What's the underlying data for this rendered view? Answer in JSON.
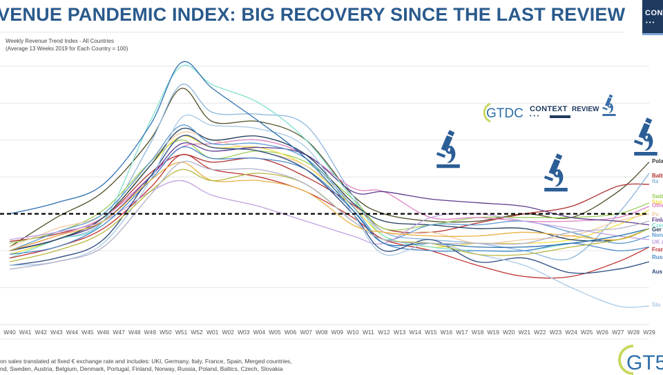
{
  "header": {
    "title": "VENUE PANDEMIC INDEX: BIG RECOVERY SINCE THE LAST REVIEW",
    "badge_text": "CON",
    "badge_dots": "•••"
  },
  "subtitle": {
    "line1": "Weekly Revenue Trend Index - All Countries",
    "line2": "(Average 13 Weeks 2019 for Each Country = 100)"
  },
  "context_logo": {
    "brand": "GTDC",
    "context": "CONTEXT",
    "review": "REVIEW",
    "dots": "•••"
  },
  "bottom_logo": {
    "brand": "GT5"
  },
  "footnote": {
    "line1": "on sales translated at fixed € exchange rate and includes: UKI, Germany, Italy, France, Spain, Merged countries,",
    "line2": "nd, Sweden, Austria, Belgium, Denmark, Portugal, Finland, Norway, Russia, Poland, Baltics, Czech, Slovakia"
  },
  "chart_data": {
    "type": "line",
    "title": "Weekly Revenue Trend Index - All Countries",
    "subtitle": "(Average 13 Weeks 2019 for Each Country = 100)",
    "xlabel": "",
    "ylabel": "",
    "ylim": [
      20,
      180
    ],
    "gridlines": [
      40,
      60,
      80,
      100,
      120,
      140,
      160,
      180
    ],
    "reference_line": {
      "value": 100,
      "style": "dashed",
      "color": "#000000"
    },
    "grid": true,
    "legend": "end-labels-right",
    "categories": [
      "W40",
      "W41",
      "W42",
      "W43",
      "W44",
      "W45",
      "W46",
      "W47",
      "W48",
      "W49",
      "W50",
      "W51",
      "W52",
      "W01",
      "W02",
      "W03",
      "W04",
      "W05",
      "W06",
      "W07",
      "W08",
      "W09",
      "W10",
      "W11",
      "W12",
      "W13",
      "W14",
      "W15",
      "W16",
      "W17",
      "W18",
      "W19",
      "W20",
      "W21",
      "W22",
      "W23",
      "W24",
      "W25",
      "W26",
      "W27",
      "W28",
      "W29"
    ],
    "sample_weeks": [
      0,
      3,
      6,
      9,
      11,
      13,
      16,
      19,
      22,
      24,
      27,
      30,
      33,
      36,
      39,
      41
    ],
    "series": [
      {
        "name": "Poland",
        "color": "#4d4d26",
        "values": [
          82,
          98,
          112,
          140,
          168,
          150,
          150,
          140,
          110,
          100,
          96,
          96,
          100,
          98,
          112,
          128
        ]
      },
      {
        "name": "Baltics",
        "color": "#b03030",
        "values": [
          85,
          89,
          98,
          122,
          132,
          128,
          130,
          120,
          105,
          92,
          90,
          95,
          100,
          104,
          115,
          116
        ]
      },
      {
        "name": "Italy",
        "color": "#8ab4dc",
        "values": [
          80,
          86,
          96,
          138,
          170,
          155,
          154,
          148,
          110,
          90,
          86,
          84,
          80,
          76,
          100,
          122
        ]
      },
      {
        "name": "Switzerland",
        "color": "#9acd5a",
        "values": [
          84,
          90,
          102,
          128,
          140,
          130,
          134,
          128,
          108,
          92,
          94,
          98,
          98,
          98,
          100,
          106
        ]
      },
      {
        "name": "Spain",
        "color": "#f0e040",
        "values": [
          78,
          86,
          98,
          126,
          142,
          136,
          136,
          126,
          104,
          88,
          82,
          84,
          84,
          86,
          94,
          102
        ]
      },
      {
        "name": "Other",
        "color": "#e080c0",
        "values": [
          80,
          88,
          98,
          120,
          136,
          138,
          140,
          132,
          114,
          112,
          98,
          98,
          96,
          96,
          98,
          104
        ]
      },
      {
        "name": "Portugal",
        "color": "#f0c8a0",
        "values": [
          82,
          92,
          100,
          128,
          144,
          140,
          134,
          126,
          106,
          90,
          90,
          84,
          86,
          88,
          96,
          100
        ]
      },
      {
        "name": "Finland",
        "color": "#5a3a8c",
        "values": [
          80,
          86,
          96,
          120,
          138,
          134,
          136,
          132,
          112,
          112,
          108,
          106,
          104,
          98,
          96,
          94
        ]
      },
      {
        "name": "Czech",
        "color": "#80e0d0",
        "values": [
          76,
          86,
          96,
          150,
          180,
          170,
          160,
          140,
          108,
          88,
          82,
          80,
          80,
          84,
          88,
          92
        ]
      },
      {
        "name": "Germany",
        "color": "#1e3a5a",
        "values": [
          80,
          86,
          98,
          126,
          146,
          140,
          142,
          132,
          106,
          96,
          94,
          92,
          92,
          86,
          86,
          92
        ]
      },
      {
        "name": "Norway",
        "color": "#5a9ad0",
        "values": [
          80,
          90,
          100,
          128,
          148,
          138,
          138,
          130,
          104,
          86,
          94,
          94,
          96,
          90,
          84,
          88
        ]
      },
      {
        "name": "UK & Ireland",
        "color": "#c0a0e0",
        "values": [
          86,
          90,
          96,
          112,
          118,
          110,
          104,
          96,
          88,
          84,
          98,
          100,
          96,
          92,
          88,
          86
        ]
      },
      {
        "name": "France",
        "color": "#c03030",
        "values": [
          76,
          82,
          92,
          114,
          132,
          124,
          120,
          112,
          98,
          86,
          80,
          72,
          66,
          66,
          74,
          82
        ]
      },
      {
        "name": "Russia",
        "color": "#4a88c8",
        "values": [
          78,
          82,
          94,
          118,
          136,
          130,
          130,
          124,
          102,
          84,
          80,
          80,
          80,
          84,
          80,
          82
        ]
      },
      {
        "name": "Austria",
        "color": "#2a4a80",
        "values": [
          72,
          76,
          86,
          120,
          142,
          136,
          134,
          124,
          100,
          80,
          86,
          74,
          76,
          68,
          70,
          74
        ]
      },
      {
        "name": "Slovakia",
        "color": "#a8c8e4",
        "values": [
          72,
          74,
          84,
          118,
          152,
          148,
          146,
          136,
          100,
          78,
          84,
          78,
          72,
          60,
          50,
          50
        ]
      },
      {
        "name": "Belgium",
        "color": "#e8b040",
        "values": [
          80,
          88,
          96,
          118,
          128,
          118,
          118,
          112,
          94,
          90,
          88,
          88,
          90,
          88,
          86,
          92
        ]
      },
      {
        "name": "Sweden",
        "color": "#2c70b0",
        "values": [
          100,
          106,
          116,
          148,
          182,
          168,
          150,
          130,
          102,
          84,
          84,
          82,
          82,
          84,
          88,
          92
        ]
      },
      {
        "name": "Denmark",
        "color": "#b8b840",
        "values": [
          74,
          80,
          90,
          112,
          124,
          118,
          122,
          116,
          96,
          86,
          84,
          78,
          78,
          82,
          86,
          92
        ]
      },
      {
        "name": "Merged countries",
        "color": "#b0b0c8",
        "values": [
          70,
          74,
          82,
          110,
          128,
          124,
          124,
          116,
          96,
          86,
          84,
          84,
          84,
          90,
          92,
          96
        ]
      }
    ],
    "end_labels": [
      {
        "text": "Pola",
        "color": "#333333",
        "y": 128
      },
      {
        "text": "Baltic",
        "color": "#b03030",
        "y": 120
      },
      {
        "text": "Ita",
        "color": "#8ab4dc",
        "y": 117
      },
      {
        "text": "Switz",
        "color": "#9acd5a",
        "y": 109
      },
      {
        "text": "Spa",
        "color": "#f0e040",
        "y": 106
      },
      {
        "text": "Othe",
        "color": "#e080c0",
        "y": 104
      },
      {
        "text": "Po",
        "color": "#f0c8a0",
        "y": 99
      },
      {
        "text": "Finla",
        "color": "#5a3a8c",
        "y": 96
      },
      {
        "text": "Czech",
        "color": "#80e0d0",
        "y": 93
      },
      {
        "text": "Ger",
        "color": "#1e3a5a",
        "y": 91
      },
      {
        "text": "Norw",
        "color": "#5a9ad0",
        "y": 88
      },
      {
        "text": "UK &",
        "color": "#c0a0e0",
        "y": 84
      },
      {
        "text": "Franc",
        "color": "#c03030",
        "y": 80
      },
      {
        "text": "Russ",
        "color": "#4a88c8",
        "y": 76
      },
      {
        "text": "Aus",
        "color": "#2a4a80",
        "y": 68
      },
      {
        "text": "Slo",
        "color": "#a8c8e4",
        "y": 50
      }
    ],
    "annotations": [
      {
        "type": "microscope-icon",
        "week": "W16",
        "y": 140
      },
      {
        "type": "microscope-icon",
        "week": "W23",
        "y": 120
      },
      {
        "type": "microscope-icon",
        "week": "W29",
        "y": 150
      }
    ]
  }
}
